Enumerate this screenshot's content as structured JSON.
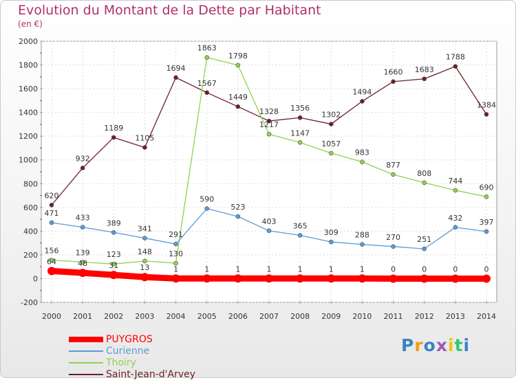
{
  "chart_data": {
    "type": "line",
    "title": "Evolution du Montant de la Dette par Habitant",
    "subtitle": "(en €)",
    "categories": [
      "2000",
      "2001",
      "2002",
      "2003",
      "2004",
      "2005",
      "2006",
      "2007",
      "2008",
      "2009",
      "2010",
      "2011",
      "2012",
      "2013",
      "2014"
    ],
    "ylim": [
      -200,
      2000
    ],
    "yticks": [
      "-200",
      "0",
      "200",
      "400",
      "600",
      "800",
      "1000",
      "1200",
      "1400",
      "1600",
      "1800",
      "2000"
    ],
    "grid": true,
    "legend_placement": "bottom-left",
    "series": [
      {
        "name": "PUYGROS",
        "color": "#ff0000",
        "values": [
          64,
          48,
          31,
          13,
          1,
          1,
          1,
          1,
          1,
          1,
          1,
          0,
          0,
          0,
          0
        ],
        "labels": [
          "64",
          "48",
          "31",
          "13",
          "1",
          "1",
          "1",
          "1",
          "1",
          "1",
          "1",
          "0",
          "0",
          "0",
          "0"
        ]
      },
      {
        "name": "Curienne",
        "color": "#5b9bd5",
        "values": [
          471,
          433,
          389,
          341,
          291,
          590,
          523,
          403,
          365,
          309,
          288,
          270,
          251,
          432,
          397
        ],
        "labels": [
          "471",
          "433",
          "389",
          "341",
          "291",
          "590",
          "523",
          "403",
          "365",
          "309",
          "288",
          "270",
          "251",
          "432",
          "397"
        ]
      },
      {
        "name": "Thoiry",
        "color": "#92d050",
        "values": [
          156,
          139,
          123,
          148,
          130,
          1863,
          1798,
          1217,
          1147,
          1057,
          983,
          877,
          808,
          744,
          690
        ],
        "labels": [
          "156",
          "139",
          "123",
          "148",
          "130",
          "1863",
          "1798",
          "1217",
          "1147",
          "1057",
          "983",
          "877",
          "808",
          "744",
          "690"
        ]
      },
      {
        "name": "Saint-Jean-d'Arvey",
        "color": "#6b1f27",
        "values": [
          620,
          932,
          1189,
          1105,
          1694,
          1567,
          1449,
          1328,
          1356,
          1302,
          1494,
          1660,
          1683,
          1788,
          1384
        ],
        "labels": [
          "620",
          "932",
          "1189",
          "1105",
          "1694",
          "1567",
          "1449",
          "1328",
          "1356",
          "1302",
          "1494",
          "1660",
          "1683",
          "1788",
          "1384"
        ]
      }
    ]
  },
  "logo": {
    "letters": [
      "P",
      "r",
      "o",
      "x",
      "i",
      "t",
      "i"
    ],
    "colors": [
      "#3b82c4",
      "#f39c12",
      "#3b82c4",
      "#9b59b6",
      "#f1c40f",
      "#2ecc71",
      "#3b82c4"
    ]
  }
}
